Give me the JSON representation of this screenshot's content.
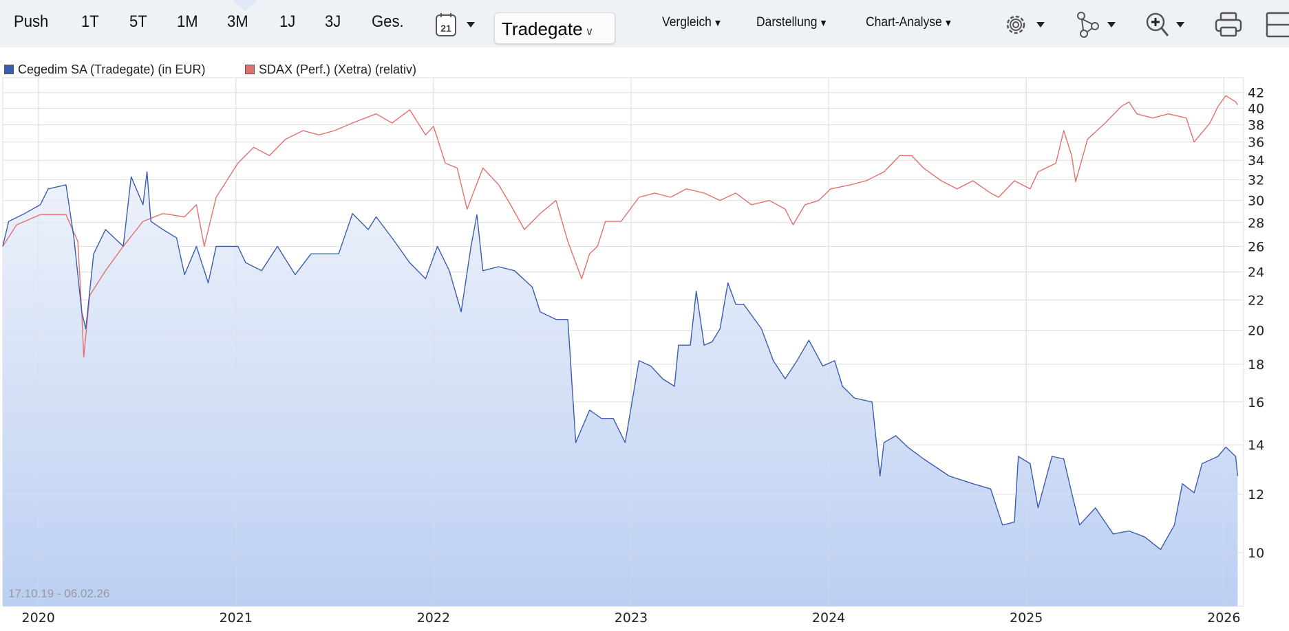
{
  "toolbar": {
    "periods": [
      "Push",
      "1T",
      "5T",
      "1M",
      "3M",
      "1J",
      "3J",
      "Ges."
    ],
    "active_period": "3M",
    "calendar_day": "21",
    "exchange": "Tradegate",
    "menus": [
      "Vergleich",
      "Darstellung",
      "Chart-Analyse"
    ]
  },
  "date_range": "17.10.19 - 06.02.26",
  "colors": {
    "primary": "#3a5dae",
    "compare": "#e2706b",
    "area_top": "#eef2fb",
    "area_bottom": "#bccff2"
  },
  "chart_data": {
    "type": "line",
    "y_scale": "log",
    "ylim": [
      8.46,
      44
    ],
    "xlim": [
      2019.82,
      2026.1
    ],
    "yticks": [
      10,
      12,
      14,
      16,
      18,
      20,
      22,
      24,
      26,
      28,
      30,
      32,
      34,
      36,
      38,
      40,
      42
    ],
    "xticks": [
      2020,
      2021,
      2022,
      2023,
      2024,
      2025,
      2026
    ],
    "grid": true,
    "legend_position": "top-left",
    "series": [
      {
        "name": "Cegedim SA (Tradegate) (in EUR)",
        "color": "#3a5dae",
        "fill": true,
        "points": [
          [
            2019.82,
            26.0
          ],
          [
            2019.85,
            28.1
          ],
          [
            2019.93,
            28.8
          ],
          [
            2020.01,
            29.6
          ],
          [
            2020.05,
            31.1
          ],
          [
            2020.14,
            31.5
          ],
          [
            2020.18,
            26.7
          ],
          [
            2020.22,
            21.2
          ],
          [
            2020.24,
            20.1
          ],
          [
            2020.28,
            25.4
          ],
          [
            2020.34,
            27.4
          ],
          [
            2020.43,
            26.0
          ],
          [
            2020.47,
            32.3
          ],
          [
            2020.53,
            29.6
          ],
          [
            2020.55,
            32.8
          ],
          [
            2020.57,
            28.1
          ],
          [
            2020.63,
            27.4
          ],
          [
            2020.7,
            26.7
          ],
          [
            2020.74,
            23.8
          ],
          [
            2020.8,
            26.0
          ],
          [
            2020.86,
            23.2
          ],
          [
            2020.9,
            26.0
          ],
          [
            2021.01,
            26.0
          ],
          [
            2021.05,
            24.7
          ],
          [
            2021.13,
            24.1
          ],
          [
            2021.21,
            26.0
          ],
          [
            2021.3,
            23.8
          ],
          [
            2021.38,
            25.4
          ],
          [
            2021.46,
            25.4
          ],
          [
            2021.52,
            25.4
          ],
          [
            2021.59,
            28.8
          ],
          [
            2021.67,
            27.4
          ],
          [
            2021.71,
            28.5
          ],
          [
            2021.79,
            26.7
          ],
          [
            2021.88,
            24.7
          ],
          [
            2021.96,
            23.5
          ],
          [
            2022.02,
            26.0
          ],
          [
            2022.08,
            24.1
          ],
          [
            2022.14,
            21.2
          ],
          [
            2022.19,
            26.0
          ],
          [
            2022.22,
            28.7
          ],
          [
            2022.25,
            24.1
          ],
          [
            2022.33,
            24.4
          ],
          [
            2022.41,
            24.1
          ],
          [
            2022.5,
            22.9
          ],
          [
            2022.54,
            21.2
          ],
          [
            2022.62,
            20.7
          ],
          [
            2022.68,
            20.7
          ],
          [
            2022.72,
            14.1
          ],
          [
            2022.79,
            15.6
          ],
          [
            2022.85,
            15.2
          ],
          [
            2022.91,
            15.2
          ],
          [
            2022.97,
            14.1
          ],
          [
            2023.04,
            18.2
          ],
          [
            2023.1,
            17.9
          ],
          [
            2023.16,
            17.2
          ],
          [
            2023.22,
            16.8
          ],
          [
            2023.24,
            19.1
          ],
          [
            2023.3,
            19.1
          ],
          [
            2023.33,
            22.6
          ],
          [
            2023.37,
            19.1
          ],
          [
            2023.41,
            19.3
          ],
          [
            2023.45,
            20.1
          ],
          [
            2023.49,
            23.2
          ],
          [
            2023.53,
            21.7
          ],
          [
            2023.57,
            21.7
          ],
          [
            2023.66,
            20.1
          ],
          [
            2023.72,
            18.2
          ],
          [
            2023.78,
            17.2
          ],
          [
            2023.84,
            18.2
          ],
          [
            2023.9,
            19.4
          ],
          [
            2023.97,
            17.9
          ],
          [
            2024.03,
            18.2
          ],
          [
            2024.07,
            16.8
          ],
          [
            2024.13,
            16.2
          ],
          [
            2024.22,
            16.0
          ],
          [
            2024.26,
            12.7
          ],
          [
            2024.28,
            14.1
          ],
          [
            2024.34,
            14.4
          ],
          [
            2024.4,
            13.9
          ],
          [
            2024.48,
            13.4
          ],
          [
            2024.61,
            12.7
          ],
          [
            2024.73,
            12.4
          ],
          [
            2024.82,
            12.2
          ],
          [
            2024.88,
            10.9
          ],
          [
            2024.94,
            11.0
          ],
          [
            2024.96,
            13.5
          ],
          [
            2025.02,
            13.2
          ],
          [
            2025.06,
            11.5
          ],
          [
            2025.13,
            13.5
          ],
          [
            2025.19,
            13.4
          ],
          [
            2025.23,
            12.05
          ],
          [
            2025.27,
            10.9
          ],
          [
            2025.35,
            11.5
          ],
          [
            2025.44,
            10.6
          ],
          [
            2025.52,
            10.7
          ],
          [
            2025.6,
            10.5
          ],
          [
            2025.68,
            10.1
          ],
          [
            2025.75,
            10.9
          ],
          [
            2025.79,
            12.4
          ],
          [
            2025.85,
            12.05
          ],
          [
            2025.89,
            13.2
          ],
          [
            2025.97,
            13.5
          ],
          [
            2026.01,
            13.9
          ],
          [
            2026.06,
            13.5
          ],
          [
            2026.07,
            12.7
          ]
        ]
      },
      {
        "name": "SDAX (Perf.) (Xetra) (relativ)",
        "color": "#e2706b",
        "fill": false,
        "points": [
          [
            2019.82,
            26.0
          ],
          [
            2019.89,
            27.8
          ],
          [
            2020.01,
            28.7
          ],
          [
            2020.14,
            28.7
          ],
          [
            2020.2,
            26.4
          ],
          [
            2020.22,
            21.2
          ],
          [
            2020.23,
            18.4
          ],
          [
            2020.26,
            22.3
          ],
          [
            2020.34,
            24.1
          ],
          [
            2020.43,
            26.0
          ],
          [
            2020.53,
            28.1
          ],
          [
            2020.63,
            28.8
          ],
          [
            2020.74,
            28.5
          ],
          [
            2020.8,
            29.6
          ],
          [
            2020.84,
            26.0
          ],
          [
            2020.9,
            30.3
          ],
          [
            2021.01,
            33.7
          ],
          [
            2021.09,
            35.4
          ],
          [
            2021.17,
            34.5
          ],
          [
            2021.25,
            36.3
          ],
          [
            2021.34,
            37.3
          ],
          [
            2021.42,
            36.8
          ],
          [
            2021.5,
            37.3
          ],
          [
            2021.59,
            38.2
          ],
          [
            2021.71,
            39.3
          ],
          [
            2021.79,
            38.2
          ],
          [
            2021.88,
            39.8
          ],
          [
            2021.96,
            36.8
          ],
          [
            2022.0,
            37.8
          ],
          [
            2022.06,
            33.7
          ],
          [
            2022.12,
            33.2
          ],
          [
            2022.17,
            29.2
          ],
          [
            2022.25,
            33.2
          ],
          [
            2022.33,
            31.5
          ],
          [
            2022.39,
            29.6
          ],
          [
            2022.46,
            27.4
          ],
          [
            2022.54,
            28.8
          ],
          [
            2022.62,
            30.0
          ],
          [
            2022.68,
            26.4
          ],
          [
            2022.75,
            23.5
          ],
          [
            2022.79,
            25.4
          ],
          [
            2022.83,
            26.0
          ],
          [
            2022.87,
            28.1
          ],
          [
            2022.95,
            28.1
          ],
          [
            2023.04,
            30.3
          ],
          [
            2023.12,
            30.7
          ],
          [
            2023.2,
            30.3
          ],
          [
            2023.28,
            31.1
          ],
          [
            2023.37,
            30.7
          ],
          [
            2023.45,
            30.0
          ],
          [
            2023.53,
            30.7
          ],
          [
            2023.61,
            29.6
          ],
          [
            2023.7,
            30.0
          ],
          [
            2023.78,
            29.2
          ],
          [
            2023.82,
            27.8
          ],
          [
            2023.88,
            29.6
          ],
          [
            2023.95,
            30.0
          ],
          [
            2024.01,
            31.1
          ],
          [
            2024.11,
            31.5
          ],
          [
            2024.19,
            31.9
          ],
          [
            2024.28,
            32.8
          ],
          [
            2024.36,
            34.5
          ],
          [
            2024.42,
            34.5
          ],
          [
            2024.48,
            33.2
          ],
          [
            2024.57,
            31.9
          ],
          [
            2024.65,
            31.1
          ],
          [
            2024.73,
            31.9
          ],
          [
            2024.82,
            30.7
          ],
          [
            2024.86,
            30.3
          ],
          [
            2024.94,
            31.9
          ],
          [
            2025.02,
            31.1
          ],
          [
            2025.06,
            32.8
          ],
          [
            2025.15,
            33.7
          ],
          [
            2025.19,
            37.3
          ],
          [
            2025.23,
            34.5
          ],
          [
            2025.25,
            31.8
          ],
          [
            2025.31,
            36.3
          ],
          [
            2025.4,
            38.2
          ],
          [
            2025.48,
            40.2
          ],
          [
            2025.52,
            40.8
          ],
          [
            2025.56,
            39.3
          ],
          [
            2025.64,
            38.8
          ],
          [
            2025.72,
            39.3
          ],
          [
            2025.81,
            38.8
          ],
          [
            2025.85,
            36.0
          ],
          [
            2025.93,
            38.2
          ],
          [
            2025.97,
            40.2
          ],
          [
            2026.01,
            41.6
          ],
          [
            2026.06,
            40.8
          ],
          [
            2026.07,
            40.4
          ]
        ]
      }
    ]
  }
}
